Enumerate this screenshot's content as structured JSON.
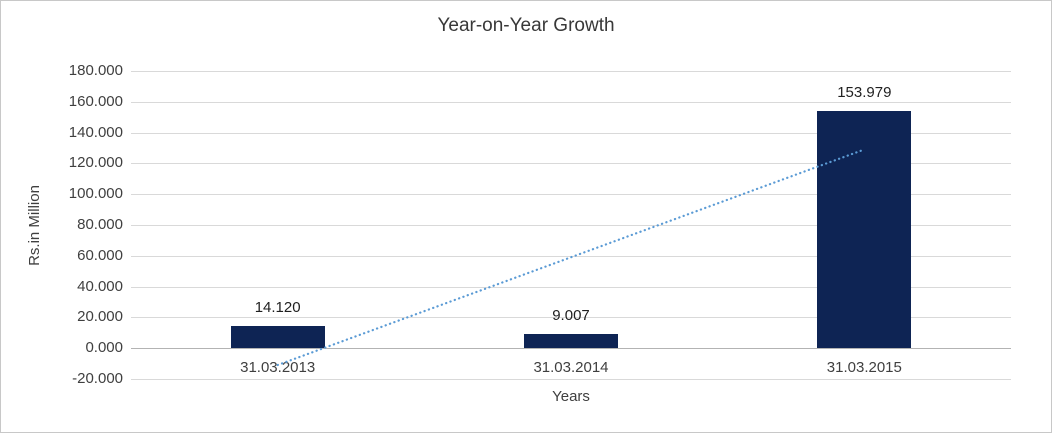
{
  "chart_data": {
    "type": "bar",
    "title": "Year-on-Year Growth",
    "xlabel": "Years",
    "ylabel": "Rs.in Million",
    "categories": [
      "31.03.2013",
      "31.03.2014",
      "31.03.2015"
    ],
    "values": [
      14.12,
      9.007,
      153.979
    ],
    "data_labels": [
      "14.120",
      "9.007",
      "153.979"
    ],
    "ylim": [
      -20,
      180
    ],
    "yticks": {
      "values": [
        180,
        160,
        140,
        120,
        100,
        80,
        60,
        40,
        20,
        0,
        -20
      ],
      "labels": [
        "180.000",
        "160.000",
        "140.000",
        "120.000",
        "100.000",
        "80.000",
        "60.000",
        "40.000",
        "20.000",
        "0.000",
        "-20.000"
      ]
    },
    "grid": true,
    "legend": "none",
    "bar_color": "#0e2454",
    "trendline": {
      "type": "linear",
      "style": "dotted",
      "color": "#5b9bd5",
      "start_value": -10.9,
      "end_value": 129.0
    }
  }
}
